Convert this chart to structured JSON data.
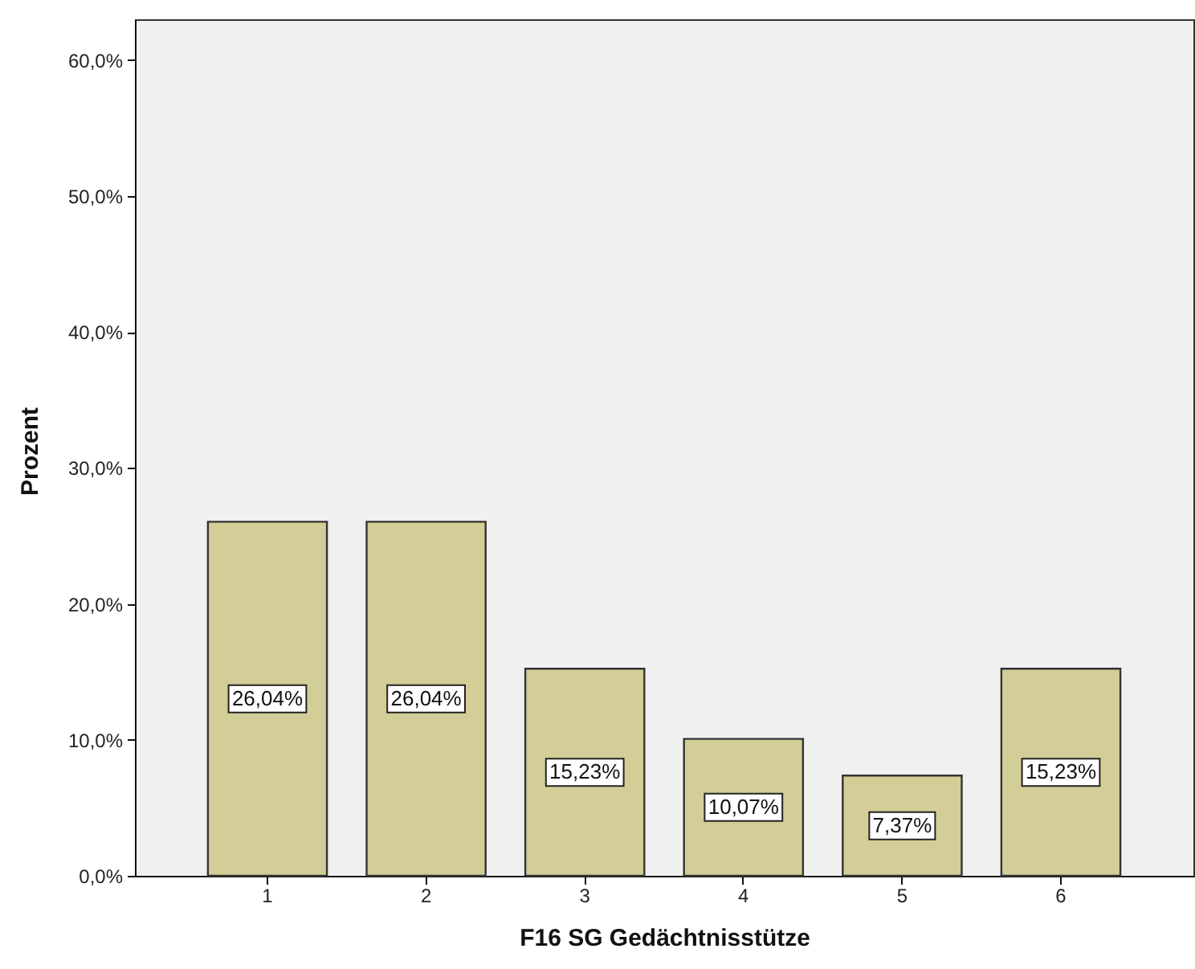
{
  "chart_data": {
    "type": "bar",
    "xlabel": "F16 SG Gedächtnisstütze",
    "ylabel": "Prozent",
    "categories": [
      "1",
      "2",
      "3",
      "4",
      "5",
      "6"
    ],
    "values": [
      26.04,
      26.04,
      15.23,
      10.07,
      7.37,
      15.23
    ],
    "value_labels": [
      "26,04%",
      "26,04%",
      "15,23%",
      "10,07%",
      "7,37%",
      "15,23%"
    ],
    "color": "#d3ce97",
    "ylim": [
      0,
      63
    ],
    "yticks": [
      {
        "value": 0,
        "label": "0,0%"
      },
      {
        "value": 10,
        "label": "10,0%"
      },
      {
        "value": 20,
        "label": "20,0%"
      },
      {
        "value": 30,
        "label": "30,0%"
      },
      {
        "value": 40,
        "label": "40,0%"
      },
      {
        "value": 50,
        "label": "50,0%"
      },
      {
        "value": 60,
        "label": "60,0%"
      }
    ]
  }
}
